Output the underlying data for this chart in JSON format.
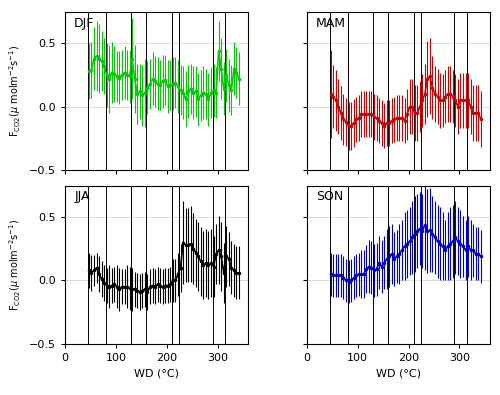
{
  "seasons": [
    "DJF",
    "MAM",
    "JJA",
    "SON"
  ],
  "colors": [
    "#00CC00",
    "#CC0000",
    "#000000",
    "#0000CC"
  ],
  "vlines": [
    45,
    80,
    130,
    160,
    210,
    225,
    290,
    315
  ],
  "xlim": [
    0,
    360
  ],
  "ylim": [
    -0.5,
    0.75
  ],
  "yticks": [
    -0.5,
    0,
    0.5
  ],
  "xticks": [
    0,
    100,
    200,
    300
  ],
  "xlabel": "WD (°C)",
  "DJF": {
    "x": [
      47,
      52,
      57,
      62,
      67,
      72,
      77,
      82,
      87,
      92,
      97,
      102,
      107,
      112,
      117,
      122,
      127,
      132,
      137,
      142,
      147,
      152,
      157,
      162,
      167,
      172,
      177,
      182,
      187,
      192,
      197,
      202,
      207,
      212,
      217,
      222,
      227,
      232,
      237,
      242,
      247,
      252,
      257,
      262,
      267,
      272,
      277,
      282,
      287,
      292,
      297,
      302,
      307,
      312,
      317,
      322,
      327,
      332,
      337,
      342
    ],
    "y": [
      0.28,
      0.29,
      0.38,
      0.4,
      0.38,
      0.36,
      0.32,
      0.25,
      0.22,
      0.27,
      0.26,
      0.24,
      0.23,
      0.25,
      0.27,
      0.25,
      0.24,
      0.38,
      0.22,
      0.1,
      0.12,
      0.09,
      0.11,
      0.15,
      0.18,
      0.22,
      0.2,
      0.18,
      0.17,
      0.2,
      0.21,
      0.16,
      0.17,
      0.18,
      0.19,
      0.16,
      0.13,
      0.11,
      0.06,
      0.12,
      0.14,
      0.11,
      0.12,
      0.06,
      0.09,
      0.11,
      0.1,
      0.06,
      0.11,
      0.13,
      0.11,
      0.44,
      0.3,
      0.14,
      0.25,
      0.17,
      0.13,
      0.3,
      0.27,
      0.22
    ],
    "err": [
      0.22,
      0.22,
      0.25,
      0.28,
      0.27,
      0.24,
      0.22,
      0.25,
      0.27,
      0.24,
      0.22,
      0.2,
      0.21,
      0.2,
      0.21,
      0.2,
      0.21,
      0.32,
      0.27,
      0.24,
      0.22,
      0.24,
      0.27,
      0.21,
      0.2,
      0.21,
      0.2,
      0.21,
      0.2,
      0.21,
      0.2,
      0.21,
      0.2,
      0.21,
      0.2,
      0.21,
      0.2,
      0.21,
      0.22,
      0.21,
      0.2,
      0.21,
      0.2,
      0.21,
      0.2,
      0.21,
      0.2,
      0.21,
      0.2,
      0.21,
      0.2,
      0.24,
      0.24,
      0.21,
      0.21,
      0.21,
      0.2,
      0.21,
      0.2,
      0.21
    ]
  },
  "MAM": {
    "x": [
      47,
      52,
      57,
      62,
      67,
      72,
      77,
      82,
      87,
      92,
      97,
      102,
      107,
      112,
      117,
      122,
      127,
      132,
      137,
      142,
      147,
      152,
      157,
      162,
      167,
      172,
      177,
      182,
      187,
      192,
      197,
      202,
      207,
      212,
      217,
      222,
      227,
      232,
      237,
      242,
      247,
      252,
      257,
      262,
      267,
      272,
      277,
      282,
      287,
      292,
      297,
      302,
      307,
      312,
      317,
      322,
      327,
      332,
      337,
      342
    ],
    "y": [
      0.1,
      0.08,
      0.05,
      0.0,
      -0.05,
      -0.1,
      -0.12,
      -0.15,
      -0.15,
      -0.13,
      -0.1,
      -0.09,
      -0.06,
      -0.06,
      -0.06,
      -0.06,
      -0.06,
      -0.08,
      -0.09,
      -0.11,
      -0.13,
      -0.15,
      -0.13,
      -0.13,
      -0.11,
      -0.1,
      -0.09,
      -0.09,
      -0.09,
      -0.11,
      -0.06,
      0.0,
      0.0,
      -0.05,
      -0.05,
      0.0,
      0.05,
      0.1,
      0.22,
      0.24,
      0.15,
      0.1,
      0.08,
      0.05,
      0.05,
      0.08,
      0.1,
      0.1,
      0.08,
      0.05,
      0.0,
      0.05,
      0.05,
      0.05,
      0.05,
      0.0,
      -0.05,
      -0.05,
      -0.05,
      -0.1
    ],
    "err": [
      0.35,
      0.25,
      0.24,
      0.22,
      0.21,
      0.2,
      0.19,
      0.19,
      0.19,
      0.19,
      0.18,
      0.18,
      0.18,
      0.18,
      0.18,
      0.18,
      0.18,
      0.18,
      0.18,
      0.18,
      0.18,
      0.18,
      0.18,
      0.18,
      0.18,
      0.18,
      0.18,
      0.18,
      0.18,
      0.18,
      0.2,
      0.22,
      0.22,
      0.22,
      0.22,
      0.2,
      0.21,
      0.24,
      0.3,
      0.3,
      0.25,
      0.22,
      0.22,
      0.22,
      0.21,
      0.21,
      0.22,
      0.22,
      0.21,
      0.21,
      0.22,
      0.22,
      0.22,
      0.22,
      0.22,
      0.22,
      0.22,
      0.22,
      0.22,
      0.22
    ]
  },
  "JJA": {
    "x": [
      47,
      52,
      57,
      62,
      67,
      72,
      77,
      82,
      87,
      92,
      97,
      102,
      107,
      112,
      117,
      122,
      127,
      132,
      137,
      142,
      147,
      152,
      157,
      162,
      167,
      172,
      177,
      182,
      187,
      192,
      197,
      202,
      207,
      212,
      217,
      222,
      227,
      232,
      237,
      242,
      247,
      252,
      257,
      262,
      267,
      272,
      277,
      282,
      287,
      292,
      297,
      302,
      307,
      312,
      317,
      322,
      327,
      332,
      337,
      342
    ],
    "y": [
      0.08,
      0.06,
      0.08,
      0.1,
      0.05,
      0.01,
      -0.02,
      -0.04,
      -0.05,
      -0.04,
      -0.03,
      -0.05,
      -0.07,
      -0.05,
      -0.05,
      -0.05,
      -0.06,
      -0.07,
      -0.07,
      -0.08,
      -0.09,
      -0.08,
      -0.07,
      -0.09,
      -0.05,
      -0.04,
      -0.05,
      -0.03,
      -0.04,
      -0.05,
      -0.04,
      -0.04,
      -0.03,
      0.0,
      0.0,
      0.05,
      0.1,
      0.3,
      0.28,
      0.28,
      0.29,
      0.25,
      0.22,
      0.19,
      0.15,
      0.12,
      0.14,
      0.12,
      0.14,
      0.11,
      0.21,
      0.24,
      0.19,
      0.06,
      0.19,
      0.17,
      0.1,
      0.08,
      0.06,
      0.06
    ],
    "err": [
      0.14,
      0.14,
      0.12,
      0.12,
      0.14,
      0.14,
      0.14,
      0.14,
      0.17,
      0.14,
      0.14,
      0.17,
      0.17,
      0.14,
      0.14,
      0.17,
      0.17,
      0.17,
      0.14,
      0.14,
      0.14,
      0.14,
      0.14,
      0.14,
      0.14,
      0.14,
      0.14,
      0.14,
      0.14,
      0.14,
      0.14,
      0.14,
      0.14,
      0.17,
      0.17,
      0.17,
      0.19,
      0.33,
      0.29,
      0.29,
      0.3,
      0.28,
      0.27,
      0.27,
      0.27,
      0.27,
      0.27,
      0.27,
      0.27,
      0.24,
      0.24,
      0.27,
      0.27,
      0.24,
      0.24,
      0.21,
      0.21,
      0.21,
      0.21,
      0.21
    ]
  },
  "SON": {
    "x": [
      47,
      52,
      57,
      62,
      67,
      72,
      77,
      82,
      87,
      92,
      97,
      102,
      107,
      112,
      117,
      122,
      127,
      132,
      137,
      142,
      147,
      152,
      157,
      162,
      167,
      172,
      177,
      182,
      187,
      192,
      197,
      202,
      207,
      212,
      217,
      222,
      227,
      232,
      237,
      242,
      247,
      252,
      257,
      262,
      267,
      272,
      277,
      282,
      287,
      292,
      297,
      302,
      307,
      312,
      317,
      322,
      327,
      332,
      337,
      342
    ],
    "y": [
      0.05,
      0.04,
      0.04,
      0.04,
      0.04,
      0.02,
      0.0,
      -0.01,
      0.0,
      0.02,
      0.04,
      0.05,
      0.05,
      0.05,
      0.09,
      0.11,
      0.1,
      0.08,
      0.09,
      0.14,
      0.11,
      0.14,
      0.17,
      0.19,
      0.21,
      0.17,
      0.19,
      0.21,
      0.24,
      0.27,
      0.29,
      0.31,
      0.34,
      0.37,
      0.39,
      0.41,
      0.39,
      0.44,
      0.39,
      0.4,
      0.37,
      0.34,
      0.31,
      0.29,
      0.27,
      0.24,
      0.27,
      0.29,
      0.31,
      0.34,
      0.31,
      0.29,
      0.27,
      0.24,
      0.27,
      0.24,
      0.24,
      0.21,
      0.21,
      0.19
    ],
    "err": [
      0.17,
      0.17,
      0.17,
      0.17,
      0.17,
      0.17,
      0.17,
      0.17,
      0.17,
      0.17,
      0.17,
      0.17,
      0.19,
      0.19,
      0.19,
      0.21,
      0.21,
      0.21,
      0.21,
      0.21,
      0.21,
      0.21,
      0.24,
      0.24,
      0.24,
      0.21,
      0.21,
      0.24,
      0.24,
      0.27,
      0.27,
      0.27,
      0.29,
      0.3,
      0.29,
      0.29,
      0.29,
      0.36,
      0.33,
      0.33,
      0.3,
      0.29,
      0.29,
      0.29,
      0.27,
      0.24,
      0.27,
      0.29,
      0.29,
      0.29,
      0.27,
      0.27,
      0.24,
      0.24,
      0.24,
      0.24,
      0.21,
      0.21,
      0.21,
      0.21
    ]
  }
}
